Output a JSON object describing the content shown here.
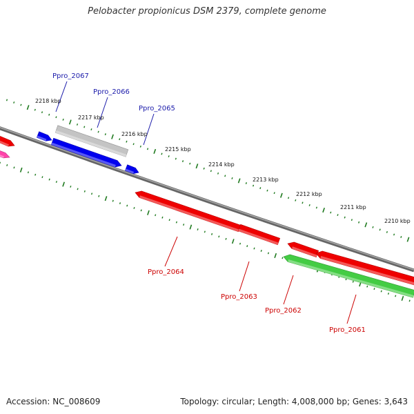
{
  "title": "Pelobacter propionicus DSM 2379, complete genome",
  "footer": {
    "accession": "Accession: NC_008609",
    "summary": "Topology: circular; Length: 4,008,000 bp; Genes: 3,643"
  },
  "colors": {
    "backbone": "#7a7a7a",
    "tick": "#1f7a1f",
    "forward_label": "#1a1aaa",
    "reverse_label": "#cc0000",
    "gene_red": "#ee0000",
    "gene_blue": "#0000ee",
    "gene_gray": "#c4c4c4",
    "gene_green": "#44cc44",
    "gene_pink": "#ff44aa"
  },
  "axis_labels": [
    "2218 kbp",
    "2217 kbp",
    "2216 kbp",
    "2215 kbp",
    "2214 kbp",
    "2213 kbp",
    "2212 kbp",
    "2211 kbp",
    "2210 kbp"
  ],
  "gene_labels": [
    {
      "name": "Ppro_2067",
      "strand": "forward"
    },
    {
      "name": "Ppro_2066",
      "strand": "forward"
    },
    {
      "name": "Ppro_2065",
      "strand": "forward"
    },
    {
      "name": "Ppro_2064",
      "strand": "reverse"
    },
    {
      "name": "Ppro_2063",
      "strand": "reverse"
    },
    {
      "name": "Ppro_2062",
      "strand": "reverse"
    },
    {
      "name": "Ppro_2061",
      "strand": "reverse"
    }
  ]
}
